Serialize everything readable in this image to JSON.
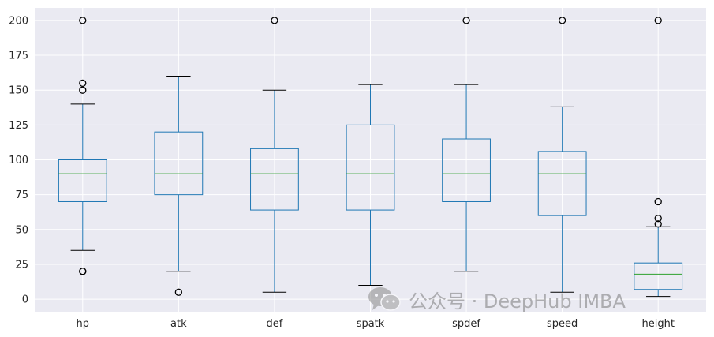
{
  "chart_data": {
    "type": "boxplot",
    "title": "",
    "xlabel": "",
    "ylabel": "",
    "ylim": [
      -9,
      209
    ],
    "yticks": [
      0,
      25,
      50,
      75,
      100,
      125,
      150,
      175,
      200
    ],
    "grid": true,
    "categories": [
      "hp",
      "atk",
      "def",
      "spatk",
      "spdef",
      "speed",
      "height"
    ],
    "boxes": [
      {
        "name": "hp",
        "whisker_low": 35,
        "q1": 70,
        "median": 90,
        "q3": 100,
        "whisker_high": 140,
        "fliers": [
          20,
          20,
          150,
          155,
          200
        ]
      },
      {
        "name": "atk",
        "whisker_low": 20,
        "q1": 75,
        "median": 90,
        "q3": 120,
        "whisker_high": 160,
        "fliers": [
          5
        ]
      },
      {
        "name": "def",
        "whisker_low": 5,
        "q1": 64,
        "median": 90,
        "q3": 108,
        "whisker_high": 150,
        "fliers": [
          200
        ]
      },
      {
        "name": "spatk",
        "whisker_low": 10,
        "q1": 64,
        "median": 90,
        "q3": 125,
        "whisker_high": 154,
        "fliers": []
      },
      {
        "name": "spdef",
        "whisker_low": 20,
        "q1": 70,
        "median": 90,
        "q3": 115,
        "whisker_high": 154,
        "fliers": [
          200
        ]
      },
      {
        "name": "speed",
        "whisker_low": 5,
        "q1": 60,
        "median": 90,
        "q3": 106,
        "whisker_high": 138,
        "fliers": [
          200
        ]
      },
      {
        "name": "height",
        "whisker_low": 2,
        "q1": 7,
        "median": 18,
        "q3": 26,
        "whisker_high": 52,
        "fliers": [
          54,
          58,
          70,
          200
        ]
      }
    ],
    "colors": {
      "background": "#eaeaf2",
      "grid": "#ffffff",
      "box": "#1f77b4",
      "median": "#2ca02c",
      "whisker": "#000000",
      "flier": "#000000"
    }
  },
  "watermark": {
    "icon": "wechat-icon",
    "text": "公众号 · DeepHub IMBA"
  }
}
